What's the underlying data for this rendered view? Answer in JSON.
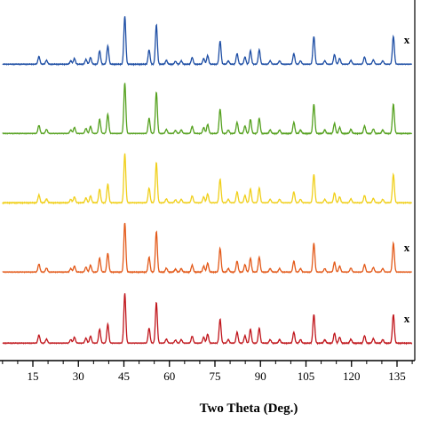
{
  "chart_data": {
    "type": "line",
    "title": "",
    "xlabel": "Two Theta (Deg.)",
    "ylabel": "",
    "xlim": [
      5,
      140
    ],
    "xticks": [
      15,
      30,
      45,
      60,
      75,
      90,
      105,
      120,
      135
    ],
    "grid": false,
    "legend": "none",
    "peaks": [
      {
        "x": 17.0,
        "h": 0.16
      },
      {
        "x": 19.5,
        "h": 0.08
      },
      {
        "x": 27.5,
        "h": 0.07
      },
      {
        "x": 28.7,
        "h": 0.12
      },
      {
        "x": 32.5,
        "h": 0.1
      },
      {
        "x": 34.0,
        "h": 0.14
      },
      {
        "x": 37.0,
        "h": 0.28
      },
      {
        "x": 39.7,
        "h": 0.38
      },
      {
        "x": 45.3,
        "h": 1.0
      },
      {
        "x": 53.3,
        "h": 0.3
      },
      {
        "x": 55.7,
        "h": 0.82
      },
      {
        "x": 59.0,
        "h": 0.08
      },
      {
        "x": 62.0,
        "h": 0.06
      },
      {
        "x": 63.9,
        "h": 0.07
      },
      {
        "x": 67.5,
        "h": 0.14
      },
      {
        "x": 71.3,
        "h": 0.12
      },
      {
        "x": 72.6,
        "h": 0.18
      },
      {
        "x": 76.7,
        "h": 0.48
      },
      {
        "x": 79.4,
        "h": 0.07
      },
      {
        "x": 82.3,
        "h": 0.22
      },
      {
        "x": 84.9,
        "h": 0.15
      },
      {
        "x": 86.7,
        "h": 0.28
      },
      {
        "x": 89.6,
        "h": 0.3
      },
      {
        "x": 93.2,
        "h": 0.07
      },
      {
        "x": 96.3,
        "h": 0.07
      },
      {
        "x": 101.0,
        "h": 0.22
      },
      {
        "x": 103.2,
        "h": 0.07
      },
      {
        "x": 107.6,
        "h": 0.58
      },
      {
        "x": 111.2,
        "h": 0.07
      },
      {
        "x": 114.4,
        "h": 0.2
      },
      {
        "x": 116.1,
        "h": 0.12
      },
      {
        "x": 119.8,
        "h": 0.08
      },
      {
        "x": 124.3,
        "h": 0.15
      },
      {
        "x": 127.2,
        "h": 0.09
      },
      {
        "x": 130.3,
        "h": 0.07
      },
      {
        "x": 133.8,
        "h": 0.58
      }
    ],
    "series": [
      {
        "color": "#1f4fa5",
        "tag": "x",
        "scale": 0.95
      },
      {
        "color": "#55a11f",
        "tag": "",
        "scale": 1.0
      },
      {
        "color": "#f0cf1a",
        "tag": "",
        "scale": 0.97
      },
      {
        "color": "#e35a1a",
        "tag": "x",
        "scale": 0.98
      },
      {
        "color": "#c0161c",
        "tag": "x",
        "scale": 0.98
      }
    ]
  }
}
